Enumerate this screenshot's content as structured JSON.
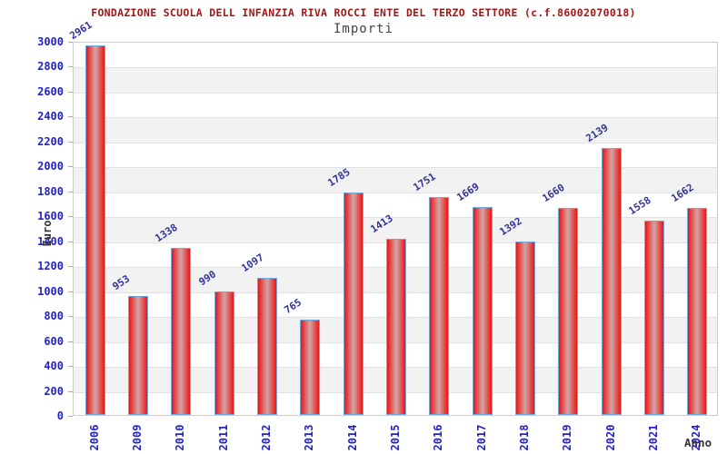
{
  "header": {
    "title": "FONDAZIONE SCUOLA DELL INFANZIA RIVA ROCCI ENTE DEL TERZO SETTORE (c.f.86002070018)",
    "subtitle": "Importi"
  },
  "chart_data": {
    "type": "bar",
    "title": "FONDAZIONE SCUOLA DELL INFANZIA RIVA ROCCI ENTE DEL TERZO SETTORE (c.f.86002070018)",
    "subtitle": "Importi",
    "xlabel": "Anno",
    "ylabel": "Euro",
    "categories": [
      "2006",
      "2009",
      "2010",
      "2011",
      "2012",
      "2013",
      "2014",
      "2015",
      "2016",
      "2017",
      "2018",
      "2019",
      "2020",
      "2021",
      "2024"
    ],
    "values": [
      2961,
      953,
      1338,
      990,
      1097,
      765,
      1785,
      1413,
      1751,
      1669,
      1392,
      1660,
      2139,
      1558,
      1662
    ],
    "ylim": [
      0,
      3000
    ],
    "ytick_step": 200,
    "grid": true,
    "legend_position": "none",
    "bands_alternating": true,
    "colors": {
      "bar_edge": "#d81d1d",
      "bar_center": "#d49c9c",
      "bar_border": "#74a8dc",
      "tick_label": "#2222cc",
      "value_label": "#333399",
      "title": "#a01818",
      "subtitle": "#444444",
      "axis_title": "#333333",
      "band": "#f2f2f2",
      "gridline": "#e2e2e2"
    }
  }
}
